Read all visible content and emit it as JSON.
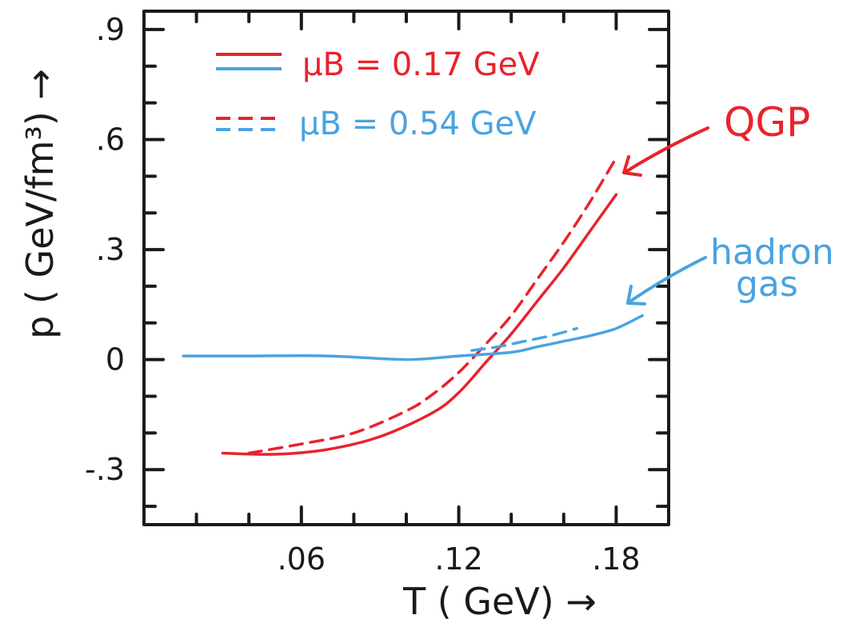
{
  "chart_data": {
    "type": "line",
    "xlabel": "T ( GeV) →",
    "ylabel": "p ( GeV/fm³) →",
    "xlim": [
      0.0,
      0.2
    ],
    "ylim": [
      -0.45,
      0.95
    ],
    "x_ticks": [
      0.06,
      0.12,
      0.18
    ],
    "x_tick_labels": [
      ".06",
      ".12",
      ".18"
    ],
    "y_ticks": [
      -0.3,
      0.0,
      0.3,
      0.6,
      0.9
    ],
    "y_tick_labels": [
      "-.3",
      "0",
      ".3",
      ".6",
      ".9"
    ],
    "grid": false,
    "legend_position": "top-left",
    "legend": [
      {
        "label": "μB = 0.17 GeV",
        "line_style": "solid"
      },
      {
        "label": "μB = 0.54 GeV",
        "line_style": "dashed"
      }
    ],
    "series": [
      {
        "curve": "QGP",
        "line_style": "solid",
        "color": "#e8232c",
        "x": [
          0.03,
          0.05,
          0.07,
          0.09,
          0.11,
          0.12,
          0.13,
          0.14,
          0.15,
          0.16,
          0.17,
          0.18
        ],
        "y": [
          -0.255,
          -0.258,
          -0.245,
          -0.21,
          -0.145,
          -0.09,
          -0.01,
          0.07,
          0.16,
          0.25,
          0.35,
          0.45
        ]
      },
      {
        "curve": "QGP",
        "line_style": "dashed",
        "color": "#e8232c",
        "x": [
          0.04,
          0.06,
          0.08,
          0.1,
          0.11,
          0.12,
          0.13,
          0.14,
          0.15,
          0.16,
          0.17,
          0.18
        ],
        "y": [
          -0.255,
          -0.23,
          -0.2,
          -0.14,
          -0.095,
          -0.035,
          0.04,
          0.12,
          0.22,
          0.32,
          0.43,
          0.55
        ]
      },
      {
        "curve": "hadron gas",
        "line_style": "solid",
        "color": "#4aa3e0",
        "x": [
          0.015,
          0.04,
          0.07,
          0.1,
          0.12,
          0.14,
          0.15,
          0.16,
          0.17,
          0.18,
          0.19
        ],
        "y": [
          0.01,
          0.01,
          0.01,
          0.0,
          0.01,
          0.02,
          0.035,
          0.05,
          0.065,
          0.085,
          0.12
        ]
      },
      {
        "curve": "hadron gas",
        "line_style": "dashed",
        "color": "#4aa3e0",
        "x": [
          0.125,
          0.135,
          0.145,
          0.155,
          0.165
        ],
        "y": [
          0.025,
          0.035,
          0.05,
          0.065,
          0.085
        ]
      }
    ],
    "annotations": [
      {
        "text": "QGP",
        "color": "#e8232c"
      },
      {
        "text": "hadron",
        "color": "#4aa3e0"
      },
      {
        "text": "gas",
        "color": "#4aa3e0"
      }
    ]
  },
  "colors": {
    "axis": "#1a1a1a",
    "qgp": "#e8232c",
    "hadron": "#4aa3e0"
  }
}
